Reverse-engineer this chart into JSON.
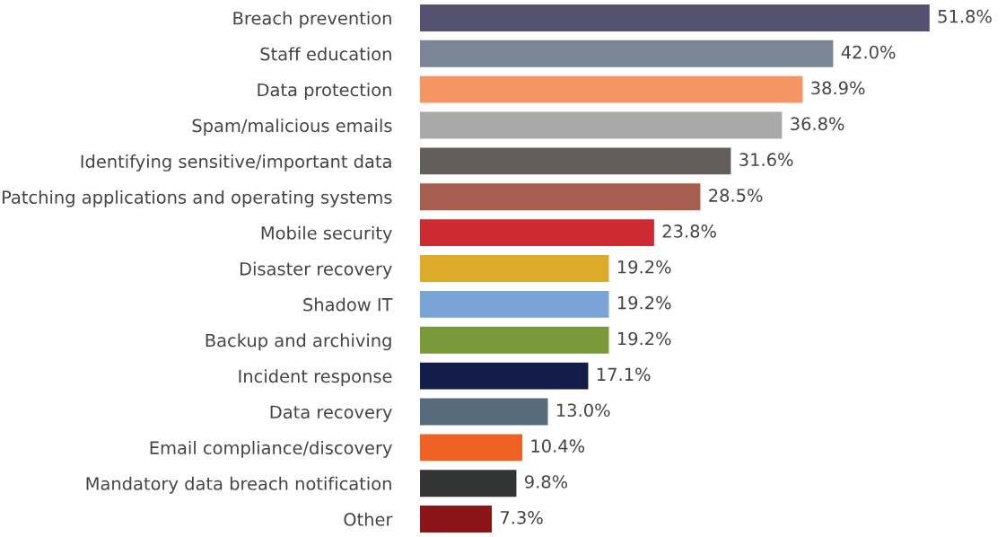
{
  "chart_data": {
    "type": "bar",
    "orientation": "horizontal",
    "categories": [
      "Breach prevention",
      "Staff education",
      "Data protection",
      "Spam/malicious emails",
      "Identifying sensitive/important data",
      "Patching applications and operating systems",
      "Mobile security",
      "Disaster recovery",
      "Shadow IT",
      "Backup and archiving",
      "Incident response",
      "Data recovery",
      "Email compliance/discovery",
      "Mandatory data breach notification",
      "Other"
    ],
    "values": [
      51.8,
      42.0,
      38.9,
      36.8,
      31.6,
      28.5,
      23.8,
      19.2,
      19.2,
      19.2,
      17.1,
      13.0,
      10.4,
      9.8,
      7.3
    ],
    "value_labels": [
      "51.8%",
      "42.0%",
      "38.9%",
      "36.8%",
      "31.6%",
      "28.5%",
      "23.8%",
      "19.2%",
      "19.2%",
      "19.2%",
      "17.1%",
      "13.0%",
      "10.4%",
      "9.8%",
      "7.3%"
    ],
    "colors": [
      "#545270",
      "#7a8596",
      "#f49563",
      "#a9a9a9",
      "#635d5c",
      "#a65f4e",
      "#cd2b31",
      "#dbab29",
      "#7aa3d6",
      "#7a9a3a",
      "#141d49",
      "#566b7c",
      "#ef6223",
      "#333434",
      "#8a1518"
    ],
    "grid": false,
    "legend": false
  }
}
